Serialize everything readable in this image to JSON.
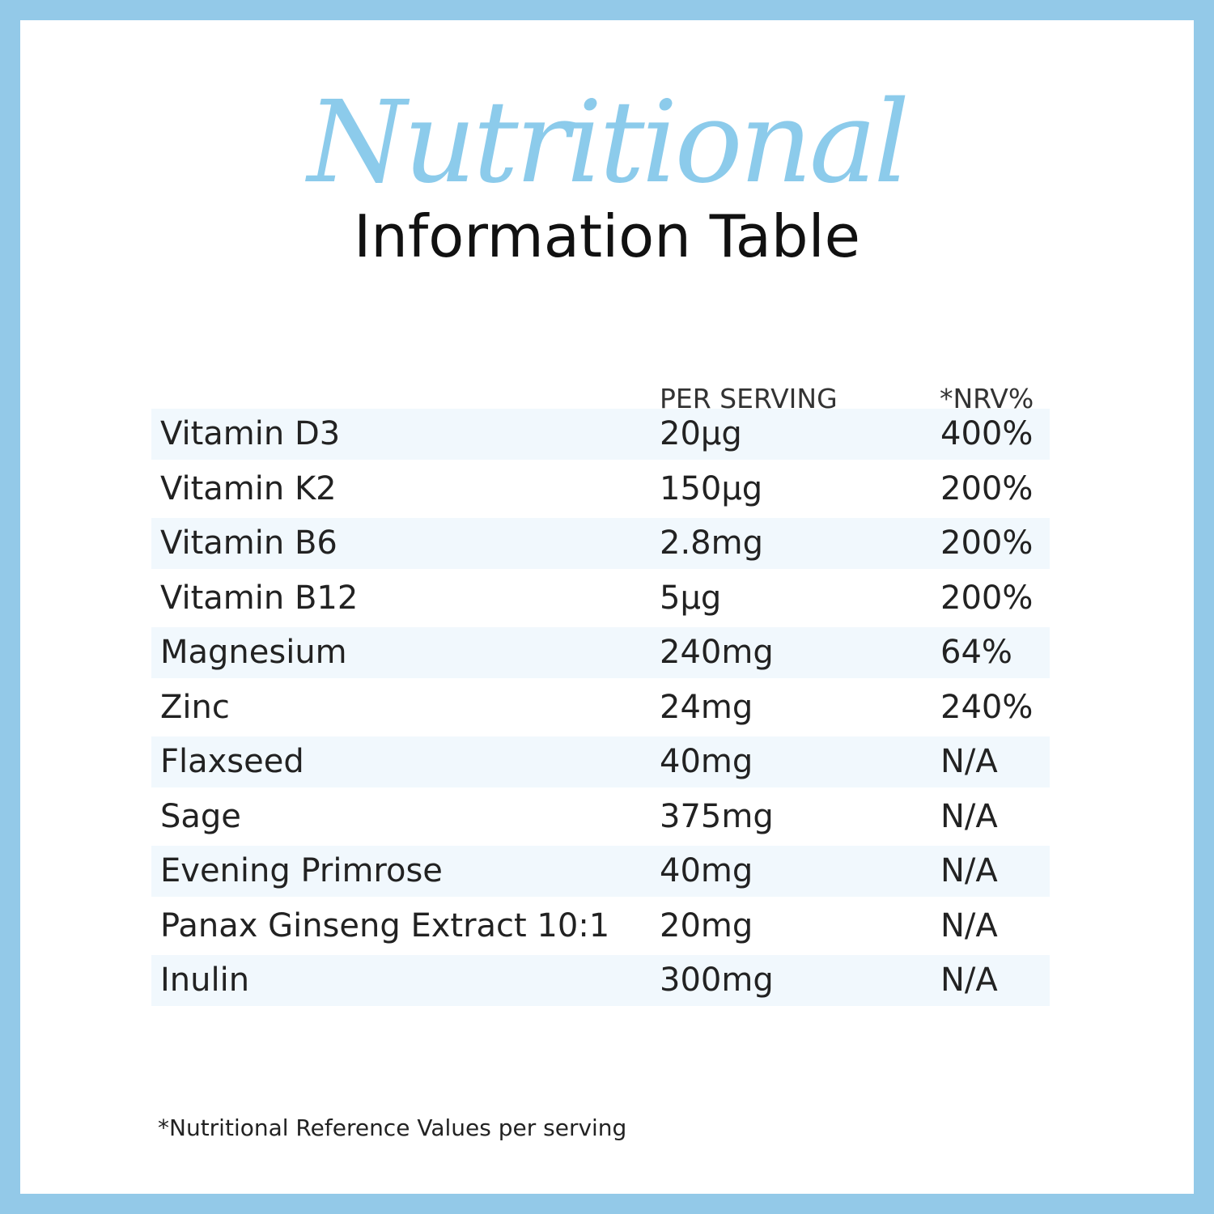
{
  "header": {
    "script_title": "Nutritional",
    "title": "Information Table"
  },
  "table": {
    "columns": [
      "PER SERVING",
      "*NRV%"
    ],
    "rows": [
      [
        "Vitamin D3",
        "20µg",
        "400%"
      ],
      [
        "Vitamin K2",
        "150µg",
        "200%"
      ],
      [
        "Vitamin B6",
        "2.8mg",
        "200%"
      ],
      [
        "Vitamin B12",
        "5µg",
        "200%"
      ],
      [
        "Magnesium",
        "240mg",
        "64%"
      ],
      [
        "Zinc",
        "24mg",
        "240%"
      ],
      [
        "Flaxseed",
        "40mg",
        "N/A"
      ],
      [
        "Sage",
        "375mg",
        "N/A"
      ],
      [
        "Evening Primrose",
        "40mg",
        "N/A"
      ],
      [
        "Panax Ginseng Extract 10:1",
        "20mg",
        "N/A"
      ],
      [
        "Inulin",
        "300mg",
        "N/A"
      ]
    ]
  },
  "footnote": "*Nutritional Reference Values per serving"
}
